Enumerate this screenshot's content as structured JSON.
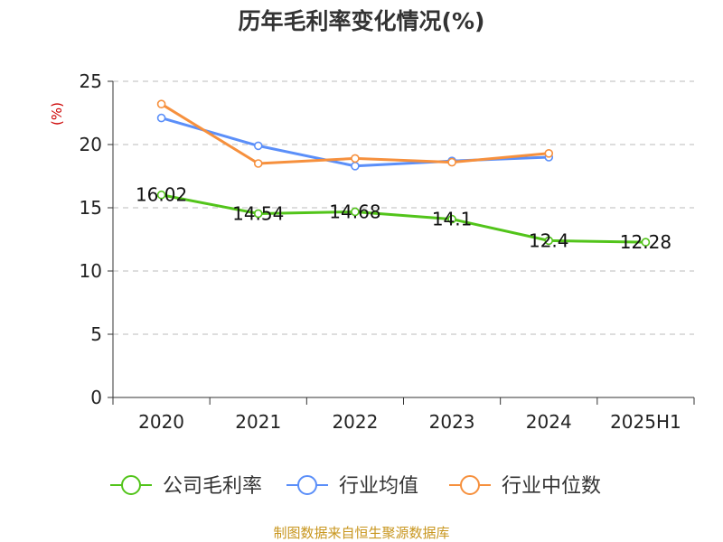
{
  "colors": {
    "company": "#52c41a",
    "industry_avg": "#5b8ff9",
    "industry_median": "#f6903d",
    "ylabel": "#cc0000",
    "footer": "#c8961e",
    "grid": "#bbbbbb",
    "axis": "#333333"
  },
  "footer": {
    "source": "制图数据来自恒生聚源数据库"
  },
  "chart_data": {
    "type": "line",
    "title": "历年毛利率变化情况(%)",
    "ylabel": "(%)",
    "xlabel": "",
    "categories": [
      "2020",
      "2021",
      "2022",
      "2023",
      "2024",
      "2025H1"
    ],
    "ylim": [
      0,
      25
    ],
    "yticks": [
      0,
      5,
      10,
      15,
      20,
      25
    ],
    "grid": true,
    "legend_position": "bottom",
    "series": [
      {
        "name": "公司毛利率",
        "values": [
          16.02,
          14.54,
          14.68,
          14.1,
          12.4,
          12.28
        ],
        "labels": [
          "16.02",
          "14.54",
          "14.68",
          "14.1",
          "12.4",
          "12.28"
        ],
        "color": "#52c41a"
      },
      {
        "name": "行业均值",
        "values": [
          22.1,
          19.9,
          18.3,
          18.7,
          19.0,
          null
        ],
        "color": "#5b8ff9"
      },
      {
        "name": "行业中位数",
        "values": [
          23.2,
          18.5,
          18.9,
          18.6,
          19.3,
          null
        ],
        "color": "#f6903d"
      }
    ]
  }
}
